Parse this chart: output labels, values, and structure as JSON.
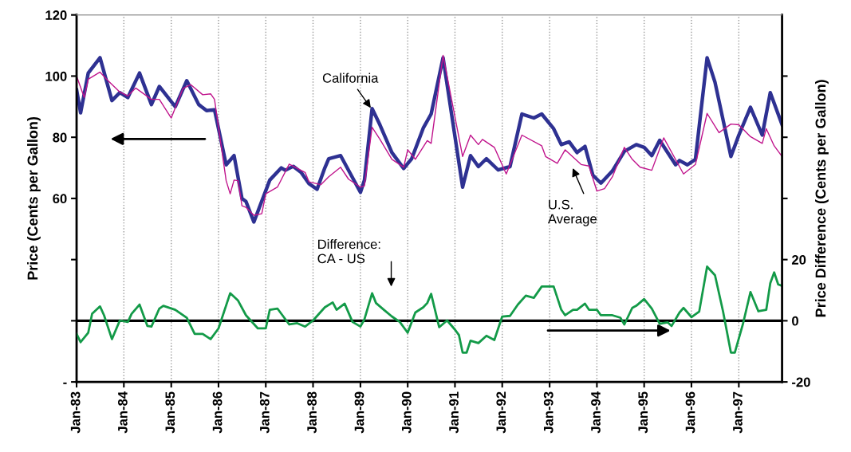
{
  "chart_data": {
    "type": "line",
    "ylabel": "Price (Cents per Gallon)",
    "y2label": "Price Difference (Cents per Gallon)",
    "xlim": [
      "1983-01",
      "1997-12"
    ],
    "xticks": [
      {
        "value": "1983-01",
        "label": "Jan-83"
      },
      {
        "value": "1984-01",
        "label": "Jan-84"
      },
      {
        "value": "1985-01",
        "label": "Jan-85"
      },
      {
        "value": "1986-01",
        "label": "Jan-86"
      },
      {
        "value": "1987-01",
        "label": "Jan-87"
      },
      {
        "value": "1988-01",
        "label": "Jan-88"
      },
      {
        "value": "1989-01",
        "label": "Jan-89"
      },
      {
        "value": "1990-01",
        "label": "Jan-90"
      },
      {
        "value": "1991-01",
        "label": "Jan-91"
      },
      {
        "value": "1992-01",
        "label": "Jan-92"
      },
      {
        "value": "1993-01",
        "label": "Jan-93"
      },
      {
        "value": "1994-01",
        "label": "Jan-94"
      },
      {
        "value": "1995-01",
        "label": "Jan-95"
      },
      {
        "value": "1996-01",
        "label": "Jan-96"
      },
      {
        "value": "1997-01",
        "label": "Jan-97"
      }
    ],
    "ylim": [
      0,
      120
    ],
    "yticks": [
      {
        "value": 0,
        "label": "-"
      },
      {
        "value": 20,
        "label": null
      },
      {
        "value": 40,
        "label": null
      },
      60,
      80,
      100,
      120
    ],
    "y2lim": [
      -20,
      100
    ],
    "y2ticks": [
      -20,
      0,
      20,
      {
        "value": 40,
        "label": null
      },
      {
        "value": 60,
        "label": null
      },
      {
        "value": 80,
        "label": null
      }
    ],
    "grid": "x",
    "line_style": "solid",
    "marker": "none",
    "ref_lines": [
      {
        "axis": "y2",
        "value": 0,
        "label": null,
        "color": "#000000"
      }
    ],
    "annotations": [
      {
        "text": "California",
        "x": "1989-04",
        "y": 89
      },
      "U.S.\nAverage",
      "Difference:\nCA - US"
    ],
    "series": [
      {
        "color": "#2e3192",
        "x": [
          "1983-01",
          "1983-02",
          "1983-04",
          "1983-07",
          "1983-10",
          "1983-12",
          "1984-02",
          "1984-05",
          "1984-08",
          "1984-10",
          "1985-02",
          "1985-05",
          "1985-08",
          "1985-10",
          "1985-12",
          "1986-03",
          "1986-05",
          "1986-07",
          "1986-08",
          "1986-10",
          "1987-02",
          "1987-05",
          "1987-06",
          "1987-08",
          "1987-10",
          "1987-12",
          "1988-02",
          "1988-04",
          "1988-05",
          "1988-08",
          "1989-01",
          "1989-02",
          "1989-04",
          "1989-06",
          "1989-09",
          "1989-12",
          "1990-02",
          "1990-05",
          "1990-07",
          "1990-10",
          "1991-03",
          "1991-05",
          "1991-07",
          "1991-09",
          "1991-12",
          "1992-03",
          "1992-06",
          "1992-09",
          "1992-11",
          "1993-02",
          "1993-04",
          "1993-06",
          "1993-08",
          "1993-10",
          "1993-12",
          "1994-02",
          "1994-05",
          "1994-08",
          "1994-11",
          "1995-01",
          "1995-03",
          "1995-05",
          "1995-09",
          "1995-10",
          "1995-12",
          "1996-02",
          "1996-05",
          "1996-07",
          "1996-11",
          "1997-01",
          "1997-04",
          "1997-07",
          "1997-09",
          "1997-12"
        ],
        "values": [
          95.5,
          88,
          101,
          106,
          92,
          94.6,
          93,
          101,
          90.7,
          96.6,
          90,
          98.5,
          90.7,
          88.7,
          89,
          71,
          74,
          60,
          59,
          52.3,
          66,
          70,
          69.2,
          70.5,
          68.5,
          64.8,
          63,
          70,
          73,
          74,
          62,
          66,
          89.4,
          84,
          75,
          69.8,
          73,
          83,
          87.6,
          106,
          63.7,
          74,
          70.4,
          73,
          69.3,
          70.4,
          87.6,
          86.3,
          87.6,
          82.8,
          77.6,
          78.5,
          75,
          77,
          67.6,
          65,
          69,
          75.4,
          77.6,
          76.7,
          74,
          79,
          71,
          72.4,
          71,
          72.8,
          106,
          98,
          73.7,
          80.7,
          89.8,
          80.7,
          94.6,
          84.1
        ]
      },
      {
        "color": "#c0148c",
        "x": [
          "1983-01",
          "1983-03",
          "1983-04",
          "1983-07",
          "1983-09",
          "1983-12",
          "1984-02",
          "1984-04",
          "1984-08",
          "1984-10",
          "1985-01",
          "1985-04",
          "1985-06",
          "1985-09",
          "1985-11",
          "1985-12",
          "1986-03",
          "1986-04",
          "1986-05",
          "1986-06",
          "1986-07",
          "1986-08",
          "1986-10",
          "1986-12",
          "1987-01",
          "1987-04",
          "1987-07",
          "1987-11",
          "1987-12",
          "1988-03",
          "1988-05",
          "1988-08",
          "1988-10",
          "1989-01",
          "1989-02",
          "1989-04",
          "1989-06",
          "1989-09",
          "1989-12",
          "1990-01",
          "1990-03",
          "1990-06",
          "1990-07",
          "1990-10",
          "1991-03",
          "1991-05",
          "1991-07",
          "1991-08",
          "1991-11",
          "1992-02",
          "1992-06",
          "1992-11",
          "1992-12",
          "1993-03",
          "1993-05",
          "1993-09",
          "1993-11",
          "1994-01",
          "1994-03",
          "1994-05",
          "1994-08",
          "1994-10",
          "1994-12",
          "1995-03",
          "1995-06",
          "1995-11",
          "1996-02",
          "1996-05",
          "1996-08",
          "1996-11",
          "1997-01",
          "1997-04",
          "1997-07",
          "1997-08",
          "1997-10",
          "1997-12"
        ],
        "values": [
          100,
          93,
          99,
          101.3,
          98.5,
          94.8,
          93.5,
          96.1,
          92.4,
          92.4,
          86.3,
          95.9,
          97.2,
          93.9,
          94.2,
          92.4,
          65.8,
          61.5,
          66,
          65.8,
          57.6,
          57.1,
          54.5,
          55,
          61.5,
          63.7,
          71.2,
          68.5,
          65.4,
          64.5,
          67.1,
          70.2,
          66.3,
          63.7,
          64.1,
          83.3,
          79.3,
          72.8,
          70.2,
          75.9,
          72.8,
          78.9,
          78,
          106.8,
          73.7,
          80.7,
          77.6,
          79.3,
          76.7,
          68,
          80.7,
          77.2,
          73.7,
          71.5,
          75.9,
          71.1,
          70.6,
          62.4,
          63.2,
          67.1,
          76.7,
          72.8,
          70.2,
          69.2,
          79.8,
          68,
          71.1,
          87.8,
          81.5,
          84.3,
          84.1,
          80.2,
          78,
          82.8,
          77.2,
          73.7
        ]
      },
      {
        "color": "#139a48",
        "axis": "y2",
        "x": [
          "1983-01",
          "1983-02",
          "1983-04",
          "1983-05",
          "1983-07",
          "1983-08",
          "1983-10",
          "1983-12",
          "1984-02",
          "1984-03",
          "1984-05",
          "1984-07",
          "1984-08",
          "1984-10",
          "1984-11",
          "1985-02",
          "1985-05",
          "1985-07",
          "1985-09",
          "1985-11",
          "1986-01",
          "1986-04",
          "1986-06",
          "1986-08",
          "1986-11",
          "1987-01",
          "1987-02",
          "1987-04",
          "1987-07",
          "1987-09",
          "1987-11",
          "1988-01",
          "1988-04",
          "1988-06",
          "1988-07",
          "1988-09",
          "1988-11",
          "1989-01",
          "1989-02",
          "1989-04",
          "1989-05",
          "1989-07",
          "1989-09",
          "1989-11",
          "1990-01",
          "1990-03",
          "1990-05",
          "1990-06",
          "1990-07",
          "1990-09",
          "1990-11",
          "1991-01",
          "1991-02",
          "1991-03",
          "1991-04",
          "1991-05",
          "1991-07",
          "1991-09",
          "1991-11",
          "1992-01",
          "1992-03",
          "1992-05",
          "1992-07",
          "1992-09",
          "1992-11",
          "1993-02",
          "1993-04",
          "1993-05",
          "1993-07",
          "1993-08",
          "1993-10",
          "1993-11",
          "1994-01",
          "1994-02",
          "1994-05",
          "1994-07",
          "1994-08",
          "1994-10",
          "1994-11",
          "1995-01",
          "1995-03",
          "1995-05",
          "1995-07",
          "1995-08",
          "1995-10",
          "1995-11",
          "1996-01",
          "1996-03",
          "1996-05",
          "1996-07",
          "1996-09",
          "1996-11",
          "1996-12",
          "1997-02",
          "1997-04",
          "1997-06",
          "1997-08",
          "1997-09",
          "1997-10",
          "1997-11",
          "1997-12"
        ],
        "values": [
          -4.3,
          -7,
          -3.9,
          2.3,
          4.7,
          1.8,
          -6,
          0.1,
          -0.4,
          2.3,
          5.3,
          -1.7,
          -1.9,
          4,
          4.9,
          3.6,
          1,
          -4.3,
          -4.3,
          -6,
          -2.5,
          9,
          6.6,
          1.8,
          -2.5,
          -2.5,
          3.6,
          4,
          -1.2,
          -0.8,
          -1.9,
          0.1,
          4.4,
          6,
          3.6,
          5.6,
          -0.4,
          -1.9,
          0.5,
          9,
          5.8,
          3.6,
          1.4,
          -0.4,
          -3.9,
          2.7,
          4.4,
          5.8,
          8.8,
          -2.1,
          0.1,
          -2.9,
          -4.7,
          -10.4,
          -10.4,
          -6.5,
          -7.3,
          -4.9,
          -6.3,
          1.4,
          1.6,
          5.3,
          8.2,
          7.5,
          11.2,
          11.2,
          3.6,
          1.8,
          3.6,
          3.6,
          5.6,
          3.6,
          3.6,
          1.8,
          1.8,
          1,
          -1.2,
          4.2,
          4.9,
          7.1,
          4,
          -1,
          -0.5,
          -1.7,
          2.7,
          4.2,
          1.2,
          3,
          17.7,
          14.9,
          3.1,
          -10.4,
          -10.4,
          -1.2,
          9.4,
          3.1,
          3.6,
          12.3,
          15.8,
          11.9,
          11.4
        ]
      }
    ]
  }
}
